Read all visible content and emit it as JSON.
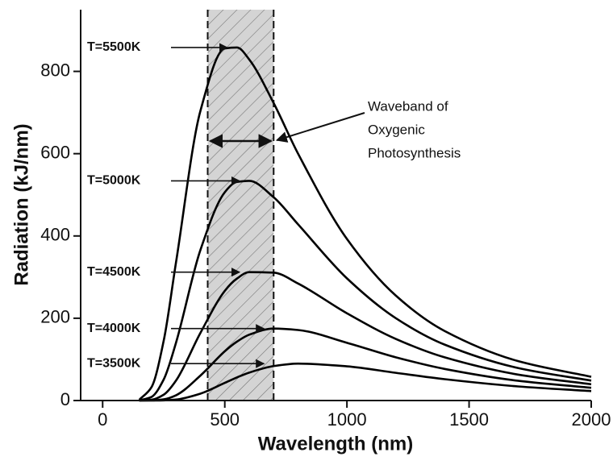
{
  "chart_data": {
    "type": "line",
    "x_label": "Wavelength (nm)",
    "y_label": "Radiation (kJ/nm)",
    "x": [
      150,
      200,
      250,
      300,
      400,
      500,
      550,
      600,
      700,
      800,
      1000,
      1200,
      1400,
      1700,
      2000
    ],
    "series": [
      {
        "name": "T=5500K",
        "color": "#000000",
        "values": [
          1.75,
          32.5,
          145.6,
          334.5,
          703.5,
          855.8,
          858,
          829,
          723,
          600,
          392.7,
          255.1,
          169,
          95.9,
          57.7
        ]
      },
      {
        "name": "T=5000K",
        "color": "#000000",
        "values": [
          0.31,
          8.78,
          51.2,
          139.9,
          365.5,
          506.3,
          531.3,
          533.8,
          494,
          428.2,
          297,
          200.2,
          135.9,
          79.1,
          48.4
        ]
      },
      {
        "name": "T=4500K",
        "color": "#000000",
        "values": [
          0.04,
          1.77,
          14.2,
          48.2,
          164.1,
          266.6,
          296.5,
          312.1,
          310.8,
          284.4,
          212.1,
          149.8,
          105,
          63.1,
          39.4
        ]
      },
      {
        "name": "T=4000K",
        "color": "#000000",
        "values": [
          0,
          0.24,
          2.88,
          12.7,
          60.5,
          119.8,
          143.2,
          160,
          174.9,
          171.4,
          140.4,
          105.1,
          76.8,
          48.1,
          30.9
        ]
      },
      {
        "name": "T=3500K",
        "color": "#000000",
        "values": [
          0,
          0.02,
          0.37,
          2.3,
          16.7,
          42.9,
          56.2,
          67.9,
          83.7,
          89.7,
          83.1,
          67.3,
          51.9,
          34.3,
          22.9
        ]
      }
    ],
    "band": [
      430,
      700
    ],
    "band_label": [
      "Waveband of",
      "Oxygenic",
      "Photosynthesis"
    ],
    "xlim": [
      -90,
      2000
    ],
    "ylim": [
      0,
      950
    ],
    "xticks": [
      0,
      500,
      1000,
      1500,
      2000
    ],
    "yticks": [
      0,
      200,
      400,
      600,
      800
    ]
  }
}
